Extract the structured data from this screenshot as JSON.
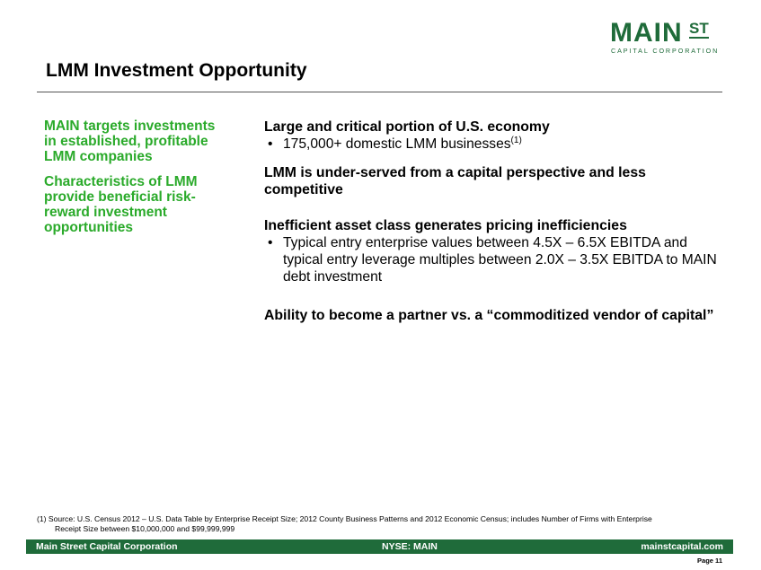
{
  "logo": {
    "main": "MAIN",
    "st": "ST",
    "sub": "CAPITAL CORPORATION"
  },
  "title": "LMM Investment Opportunity",
  "left_items": [
    "MAIN targets investments in established, profitable LMM companies",
    "Characteristics of LMM provide beneficial risk-reward investment opportunities"
  ],
  "sections": {
    "s1": {
      "heading": "Large and critical portion of U.S. economy",
      "bullet": "175,000+ domestic LMM businesses",
      "bullet_sup": "(1)"
    },
    "s2": {
      "heading": "LMM is under-served from a capital perspective and less competitive"
    },
    "s3": {
      "heading": "Inefficient asset class generates pricing inefficiencies",
      "bullet": "Typical entry enterprise values between 4.5X – 6.5X EBITDA and typical entry leverage multiples between 2.0X – 3.5X EBITDA to MAIN debt investment"
    },
    "s4": {
      "heading": "Ability to become a partner vs. a “commoditized vendor of capital”"
    }
  },
  "footnote": {
    "line1": "(1) Source: U.S. Census 2012 – U.S. Data Table by Enterprise Receipt Size; 2012 County Business Patterns and 2012 Economic Census; includes Number of Firms with Enterprise",
    "line2": "Receipt Size between $10,000,000 and $99,999,999"
  },
  "footer": {
    "left": "Main Street Capital Corporation",
    "center": "NYSE: MAIN",
    "right": "mainstcapital.com"
  },
  "page": "Page  11",
  "colors": {
    "brand_green": "#1f6b3a",
    "accent_green": "#2aaa2a"
  }
}
